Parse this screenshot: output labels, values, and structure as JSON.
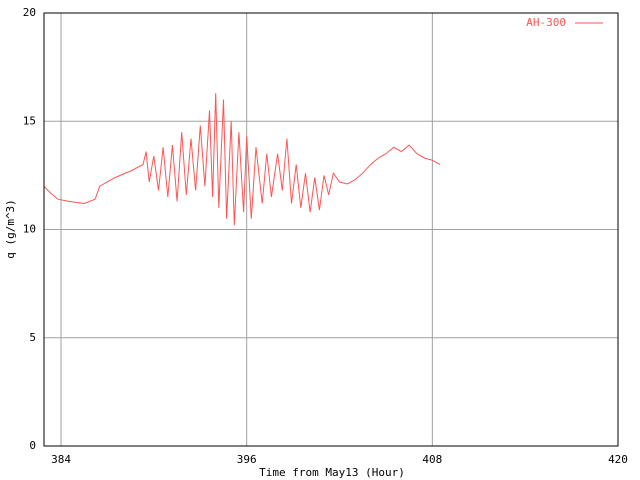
{
  "chart_data": {
    "type": "line",
    "x_label": "Time from May13 (Hour)",
    "y_label": "q (g/m^3)",
    "xlim": [
      382.9,
      420
    ],
    "ylim": [
      0,
      20
    ],
    "xticks": [
      384,
      396,
      408,
      420
    ],
    "yticks": [
      0,
      5,
      10,
      15,
      20
    ],
    "grid": true,
    "legend": "top-right",
    "x": [
      382.9,
      383.3,
      383.8,
      384.5,
      385.5,
      386.2,
      386.5,
      387.5,
      388.5,
      389.3,
      389.5,
      389.7,
      390,
      390.3,
      390.6,
      390.9,
      391.2,
      391.5,
      391.8,
      392.1,
      392.4,
      392.7,
      393,
      393.3,
      393.6,
      393.8,
      394,
      394.2,
      394.5,
      394.7,
      395,
      395.2,
      395.5,
      395.8,
      396,
      396.3,
      396.6,
      397,
      397.3,
      397.6,
      398,
      398.3,
      398.6,
      398.9,
      399.2,
      399.5,
      399.8,
      400.1,
      400.4,
      400.7,
      401,
      401.3,
      401.6,
      402,
      402.5,
      403,
      403.5,
      404,
      404.5,
      405,
      405.5,
      406,
      406.5,
      407,
      407.5,
      408,
      408.5
    ],
    "series": [
      {
        "name": "AH-300",
        "color": "#ff5555",
        "values": [
          12.0,
          11.7,
          11.4,
          11.3,
          11.2,
          11.4,
          12.0,
          12.4,
          12.7,
          13.0,
          13.6,
          12.2,
          13.4,
          11.8,
          13.8,
          11.5,
          13.9,
          11.3,
          14.5,
          11.6,
          14.2,
          11.8,
          14.8,
          12.0,
          15.5,
          11.5,
          16.3,
          11.0,
          16.0,
          10.5,
          15.0,
          10.2,
          14.5,
          10.8,
          14.3,
          10.5,
          13.8,
          11.2,
          13.5,
          11.5,
          13.5,
          11.8,
          14.2,
          11.2,
          13.0,
          11.0,
          12.6,
          10.8,
          12.4,
          10.9,
          12.5,
          11.6,
          12.6,
          12.2,
          12.1,
          12.3,
          12.6,
          13.0,
          13.3,
          13.5,
          13.8,
          13.6,
          13.9,
          13.5,
          13.3,
          13.2,
          13.0
        ]
      }
    ]
  }
}
